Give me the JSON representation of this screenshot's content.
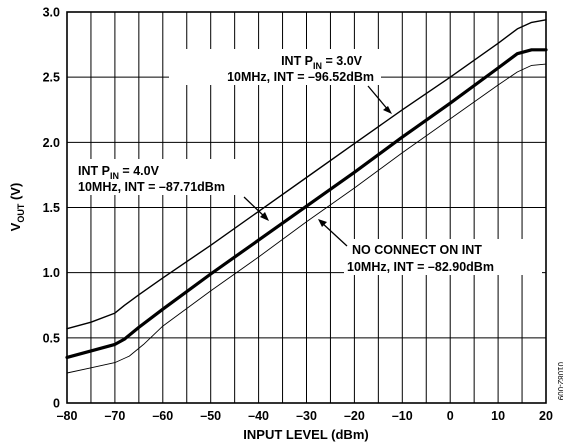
{
  "chart_data": {
    "type": "line",
    "xlabel": "INPUT LEVEL (dBm)",
    "ylabel_main": "V",
    "ylabel_sub": "OUT",
    "ylabel_unit": " (V)",
    "xlim": [
      -80,
      20
    ],
    "ylim": [
      0,
      3.0
    ],
    "x_ticks": [
      -80,
      -70,
      -60,
      -50,
      -40,
      -30,
      -20,
      -10,
      0,
      10,
      20
    ],
    "x_tick_labels": [
      "–80",
      "–70",
      "–60",
      "–50",
      "–40",
      "–30",
      "–20",
      "–10",
      "0",
      "10",
      "20"
    ],
    "y_ticks": [
      0,
      0.5,
      1.0,
      1.5,
      2.0,
      2.5,
      3.0
    ],
    "y_tick_labels": [
      "0",
      "0.5",
      "1.0",
      "1.5",
      "2.0",
      "2.5",
      "3.0"
    ],
    "grid": true,
    "series": [
      {
        "x": [
          -80,
          -75,
          -70,
          -68,
          -65,
          -60,
          -50,
          -40,
          -30,
          -20,
          -10,
          0,
          10,
          14,
          17,
          20
        ],
        "y": [
          0.57,
          0.62,
          0.69,
          0.75,
          0.83,
          0.96,
          1.21,
          1.47,
          1.73,
          1.99,
          2.25,
          2.5,
          2.76,
          2.87,
          2.92,
          2.94
        ],
        "stroke_width": 1.4
      },
      {
        "x": [
          -80,
          -75,
          -70,
          -68,
          -65,
          -60,
          -50,
          -40,
          -30,
          -20,
          -10,
          0,
          10,
          14,
          17,
          20
        ],
        "y": [
          0.35,
          0.4,
          0.45,
          0.49,
          0.58,
          0.72,
          0.99,
          1.25,
          1.51,
          1.77,
          2.04,
          2.3,
          2.57,
          2.68,
          2.71,
          2.71
        ],
        "stroke_width": 3.2
      },
      {
        "x": [
          -80,
          -75,
          -70,
          -67,
          -64,
          -60,
          -50,
          -40,
          -30,
          -20,
          -10,
          0,
          10,
          14,
          17,
          20
        ],
        "y": [
          0.23,
          0.27,
          0.31,
          0.36,
          0.45,
          0.59,
          0.86,
          1.12,
          1.39,
          1.65,
          1.92,
          2.18,
          2.44,
          2.54,
          2.59,
          2.6
        ],
        "stroke_width": 0.9
      }
    ],
    "annotations": [
      {
        "id": "a1",
        "line1_pre": "INT P",
        "line1_sub": "IN",
        "line1_post": " = 3.0V",
        "line2": "10MHz, INT = –96.52dBm"
      },
      {
        "id": "a2",
        "line1_pre": "INT P",
        "line1_sub": "IN",
        "line1_post": " = 4.0V",
        "line2": "10MHz, INT = –87.71dBm"
      },
      {
        "id": "a3",
        "line1": "NO CONNECT ON INT",
        "line2": "10MHz, INT = –82.90dBm"
      }
    ],
    "figure_id": "01082-009"
  }
}
